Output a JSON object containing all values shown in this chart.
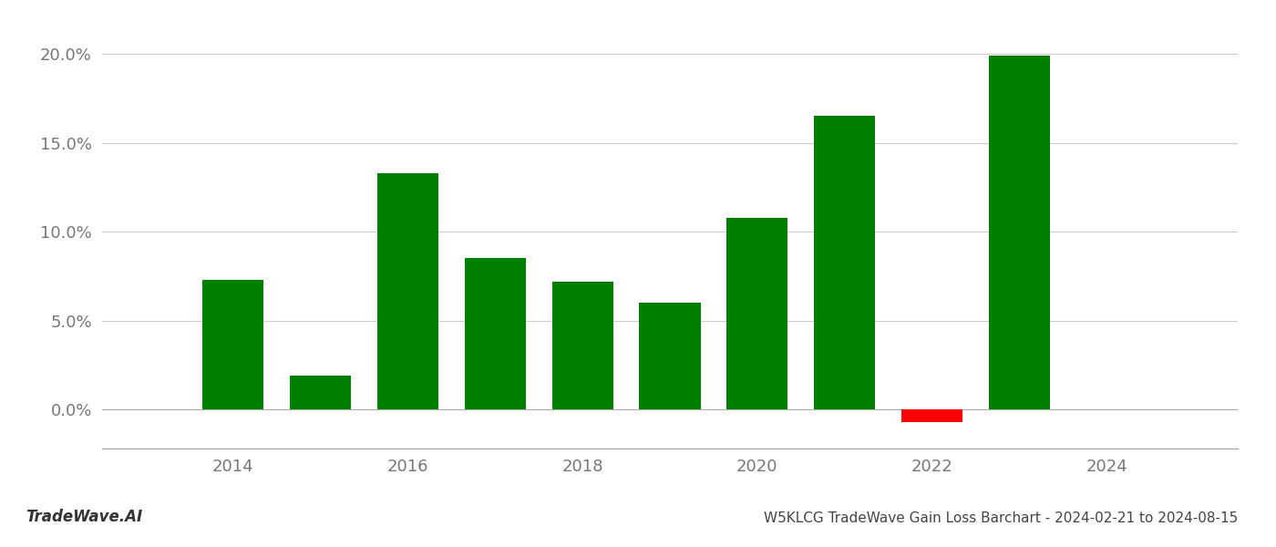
{
  "years": [
    2014,
    2015,
    2016,
    2017,
    2018,
    2019,
    2020,
    2021,
    2022,
    2023
  ],
  "values": [
    0.073,
    0.019,
    0.133,
    0.085,
    0.072,
    0.06,
    0.108,
    0.165,
    -0.007,
    0.199
  ],
  "bar_colors": [
    "#008000",
    "#008000",
    "#008000",
    "#008000",
    "#008000",
    "#008000",
    "#008000",
    "#008000",
    "#ff0000",
    "#008000"
  ],
  "title": "W5KLCG TradeWave Gain Loss Barchart - 2024-02-21 to 2024-08-15",
  "watermark": "TradeWave.AI",
  "xlim": [
    2012.5,
    2025.5
  ],
  "ylim": [
    -0.022,
    0.215
  ],
  "yticks": [
    0.0,
    0.05,
    0.1,
    0.15,
    0.2
  ],
  "ytick_labels": [
    "0.0%",
    "5.0%",
    "10.0%",
    "15.0%",
    "20.0%"
  ],
  "xtick_positions": [
    2014,
    2016,
    2018,
    2020,
    2022,
    2024
  ],
  "background_color": "#ffffff",
  "grid_color": "#cccccc",
  "bar_width": 0.7
}
